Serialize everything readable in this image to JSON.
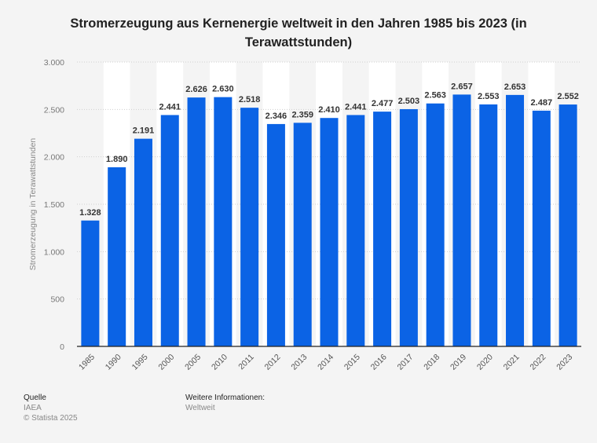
{
  "chart_data": {
    "type": "bar",
    "title": "Stromerzeugung aus Kernenergie weltweit in den Jahren 1985 bis 2023 (in Terawattstunden)",
    "xlabel": "",
    "ylabel": "Stromerzeugung in Terawattstunden",
    "ylim": [
      0,
      3000
    ],
    "yticks": [
      0,
      500,
      1000,
      1500,
      2000,
      2500,
      3000
    ],
    "ytick_labels": [
      "0",
      "500",
      "1.000",
      "1.500",
      "2.000",
      "2.500",
      "3.000"
    ],
    "categories": [
      "1985",
      "1990",
      "1995",
      "2000",
      "2005",
      "2010",
      "2011",
      "2012",
      "2013",
      "2014",
      "2015",
      "2016",
      "2017",
      "2018",
      "2019",
      "2020",
      "2021",
      "2022",
      "2023"
    ],
    "values": [
      1328,
      1890,
      2191,
      2441,
      2626,
      2630,
      2518,
      2346,
      2359,
      2410,
      2441,
      2477,
      2503,
      2563,
      2657,
      2553,
      2653,
      2487,
      2552
    ],
    "value_labels": [
      "1.328",
      "1.890",
      "2.191",
      "2.441",
      "2.626",
      "2.630",
      "2.518",
      "2.346",
      "2.359",
      "2.410",
      "2.441",
      "2.477",
      "2.503",
      "2.563",
      "2.657",
      "2.553",
      "2.653",
      "2.487",
      "2.552"
    ],
    "bar_color": "#0b63e5",
    "grid": true
  },
  "footer": {
    "source_label": "Quelle",
    "source": "IAEA",
    "copyright": "© Statista 2025",
    "info_label": "Weitere Informationen:",
    "info": "Weltweit"
  }
}
